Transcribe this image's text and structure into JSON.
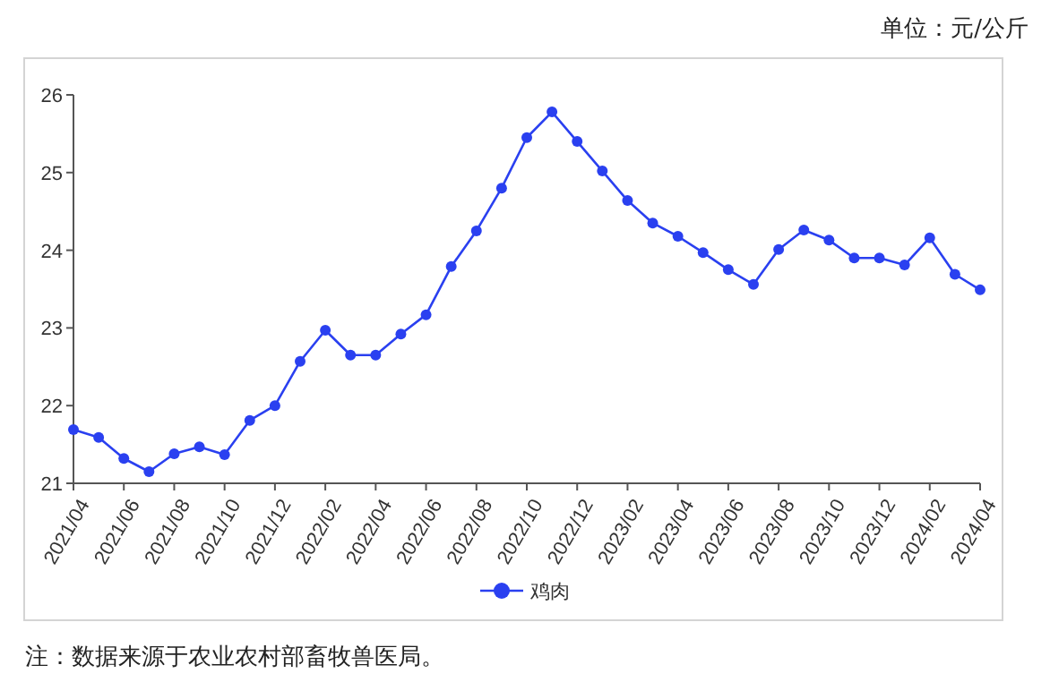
{
  "chart_data": {
    "type": "line",
    "categories": [
      "2021/04",
      null,
      "2021/06",
      null,
      "2021/08",
      null,
      "2021/10",
      null,
      "2021/12",
      null,
      "2022/02",
      null,
      "2022/04",
      null,
      "2022/06",
      null,
      "2022/08",
      null,
      "2022/10",
      null,
      "2022/12",
      null,
      "2023/02",
      null,
      "2023/04",
      null,
      "2023/06",
      null,
      "2023/08",
      null,
      "2023/10",
      null,
      "2023/12",
      null,
      "2024/02",
      null,
      "2024/04"
    ],
    "series": [
      {
        "name": "鸡肉",
        "color": "#2a40f0",
        "values": [
          21.69,
          21.59,
          21.32,
          21.15,
          21.38,
          21.47,
          21.37,
          21.81,
          22.0,
          22.57,
          22.97,
          22.65,
          22.65,
          22.92,
          23.17,
          23.79,
          24.25,
          24.8,
          25.45,
          25.78,
          25.4,
          25.02,
          24.64,
          24.35,
          24.18,
          23.97,
          23.75,
          23.56,
          24.01,
          24.26,
          24.13,
          23.9,
          23.9,
          23.81,
          24.16,
          23.69,
          23.49
        ]
      }
    ],
    "ylim": [
      21,
      26
    ],
    "yticks": [
      21,
      22,
      23,
      24,
      25,
      26
    ],
    "marker": "circle",
    "legend": "bottom",
    "annotations": [
      "单位：元/公斤",
      "注：数据来源于农业农村部畜牧兽医局。"
    ]
  }
}
